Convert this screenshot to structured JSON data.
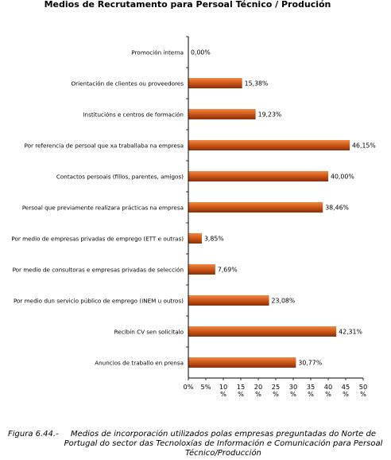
{
  "chart_data": {
    "type": "bar",
    "orientation": "horizontal",
    "title": "Medios de Recrutamento para Persoal Técnico / Produción",
    "categories": [
      "Promoción interna",
      "Orientación de clientes ou proveedores",
      "Institucións e centros de formación",
      "Por referencia de persoal que xa traballaba na empresa",
      "Contactos persoais (fillos, parentes, amigos)",
      "Persoal que previamente realizara prácticas na empresa",
      "Por medio de empresas privadas de emprego (ETT e outras)",
      "Por medio de consultoras e empresas privadas de selección",
      "Por medio dun servicio público de emprego (INEM u outros)",
      "Recibín CV sen solicitalo",
      "Anuncios de traballo en prensa"
    ],
    "values": [
      0.0,
      15.38,
      19.23,
      46.15,
      40.0,
      38.46,
      3.85,
      7.69,
      23.08,
      42.31,
      30.77
    ],
    "value_labels": [
      "0,00%",
      "15,38%",
      "19,23%",
      "46,15%",
      "40,00%",
      "38,46%",
      "3,85%",
      "7,69%",
      "23,08%",
      "42,31%",
      "30,77%"
    ],
    "xlim": [
      0,
      50
    ],
    "xticks": [
      "0%",
      "5%",
      "10",
      "15",
      "20",
      "25",
      "30",
      "35",
      "40",
      "45",
      "50"
    ],
    "xtick_suffix": "%",
    "grid": false,
    "legend": "none",
    "bar_color": "#d2591a",
    "bar_highlight": "#f08a45",
    "bar_shadow": "#8a3006"
  },
  "caption": {
    "label": "Figura 6.44.-",
    "text": "Medios de incorporación utilizados polas empresas preguntadas do Norte de Portugal do sector das Tecnoloxías de Información e Comunicación para Persoal Técnico/Producción"
  }
}
